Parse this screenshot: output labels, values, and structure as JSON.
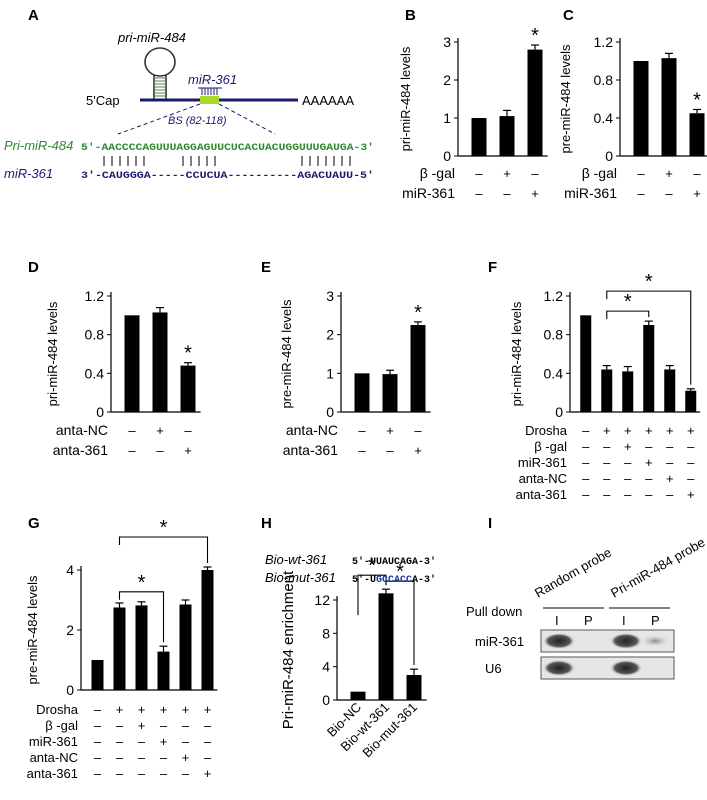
{
  "panel_labels": [
    "A",
    "B",
    "C",
    "D",
    "E",
    "F",
    "G",
    "H",
    "I"
  ],
  "panel_a": {
    "hairpin_label": "pri-miR-484",
    "cap": "5'Cap",
    "polyA": "AAAAAA",
    "mirna_label": "miR-361",
    "binding_site": "BS (82-118)",
    "pri_name": "Pri-miR-484",
    "pri_seq": "5'-AACCCCAGUUUAGGAGUUCUCACUACUGGUUUGAUGA-3'",
    "mir_name": "miR-361",
    "mir_seq": "3'-CAUGGGA-----CCUCUA----------AGACUAUU-5'",
    "colors": {
      "pri": "#2f8a2f",
      "mir": "#1b1b6e",
      "site": "#a8d82a"
    }
  },
  "chart_data": [
    {
      "id": "B",
      "type": "bar",
      "ylabel": "pri-miR-484 levels",
      "ylim": [
        0,
        3
      ],
      "yticks": [
        "0",
        "1",
        "2",
        "3"
      ],
      "values": [
        1.0,
        1.05,
        2.8
      ],
      "errors": [
        0,
        0.15,
        0.12
      ],
      "sig": [
        2
      ],
      "rows": [
        {
          "name": "β -gal",
          "signs": [
            "–",
            "+",
            "–"
          ]
        },
        {
          "name": "miR-361",
          "signs": [
            "–",
            "–",
            "+"
          ]
        }
      ]
    },
    {
      "id": "C",
      "type": "bar",
      "ylabel": "pre-miR-484 levels",
      "ylim": [
        0,
        1.2
      ],
      "yticks": [
        "0",
        "0.4",
        "0.8",
        "1.2"
      ],
      "values": [
        1.0,
        1.03,
        0.45
      ],
      "errors": [
        0,
        0.05,
        0.04
      ],
      "sig": [
        2
      ],
      "rows": [
        {
          "name": "β -gal",
          "signs": [
            "–",
            "+",
            "–"
          ]
        },
        {
          "name": "miR-361",
          "signs": [
            "–",
            "–",
            "+"
          ]
        }
      ]
    },
    {
      "id": "D",
      "type": "bar",
      "ylabel": "pri-miR-484 levels",
      "ylim": [
        0,
        1.2
      ],
      "yticks": [
        "0",
        "0.4",
        "0.8",
        "1.2"
      ],
      "values": [
        1.0,
        1.03,
        0.48
      ],
      "errors": [
        0,
        0.05,
        0.03
      ],
      "sig": [
        2
      ],
      "rows": [
        {
          "name": "anta-NC",
          "signs": [
            "–",
            "+",
            "–"
          ]
        },
        {
          "name": "anta-361",
          "signs": [
            "–",
            "–",
            "+"
          ]
        }
      ]
    },
    {
      "id": "E",
      "type": "bar",
      "ylabel": "pre-miR-484 levels",
      "ylim": [
        0,
        3
      ],
      "yticks": [
        "0",
        "1",
        "2",
        "3"
      ],
      "values": [
        1.0,
        0.98,
        2.25
      ],
      "errors": [
        0,
        0.1,
        0.08
      ],
      "sig": [
        2
      ],
      "rows": [
        {
          "name": "anta-NC",
          "signs": [
            "–",
            "+",
            "–"
          ]
        },
        {
          "name": "anta-361",
          "signs": [
            "–",
            "–",
            "+"
          ]
        }
      ]
    },
    {
      "id": "F",
      "type": "bar",
      "ylabel": "pri-miR-484 levels",
      "ylim": [
        0,
        1.2
      ],
      "yticks": [
        "0",
        "0.4",
        "0.8",
        "1.2"
      ],
      "values": [
        1.0,
        0.44,
        0.42,
        0.9,
        0.44,
        0.22
      ],
      "errors": [
        0,
        0.04,
        0.05,
        0.04,
        0.04,
        0.02
      ],
      "brackets": [
        [
          1,
          3
        ],
        [
          1,
          5
        ]
      ],
      "rows": [
        {
          "name": "Drosha",
          "signs": [
            "–",
            "+",
            "+",
            "+",
            "+",
            "+"
          ]
        },
        {
          "name": "β -gal",
          "signs": [
            "–",
            "–",
            "+",
            "–",
            "–",
            "–"
          ]
        },
        {
          "name": "miR-361",
          "signs": [
            "–",
            "–",
            "–",
            "+",
            "–",
            "–"
          ]
        },
        {
          "name": "anta-NC",
          "signs": [
            "–",
            "–",
            "–",
            "–",
            "+",
            "–"
          ]
        },
        {
          "name": "anta-361",
          "signs": [
            "–",
            "–",
            "–",
            "–",
            "–",
            "+"
          ]
        }
      ]
    },
    {
      "id": "G",
      "type": "bar",
      "ylabel": "pre-miR-484 levels",
      "ylim": [
        0,
        4
      ],
      "yticks": [
        "0",
        "2",
        "4"
      ],
      "values": [
        1.0,
        2.75,
        2.82,
        1.28,
        2.85,
        4.0
      ],
      "errors": [
        0,
        0.15,
        0.12,
        0.18,
        0.15,
        0.1
      ],
      "brackets": [
        [
          1,
          3
        ],
        [
          1,
          5
        ]
      ],
      "rows": [
        {
          "name": "Drosha",
          "signs": [
            "–",
            "+",
            "+",
            "+",
            "+",
            "+"
          ]
        },
        {
          "name": "β -gal",
          "signs": [
            "–",
            "–",
            "+",
            "–",
            "–",
            "–"
          ]
        },
        {
          "name": "miR-361",
          "signs": [
            "–",
            "–",
            "–",
            "+",
            "–",
            "–"
          ]
        },
        {
          "name": "anta-NC",
          "signs": [
            "–",
            "–",
            "–",
            "–",
            "+",
            "–"
          ]
        },
        {
          "name": "anta-361",
          "signs": [
            "–",
            "–",
            "–",
            "–",
            "–",
            "+"
          ]
        }
      ]
    },
    {
      "id": "H",
      "type": "bar",
      "ylabel": "Pri-miR-484 enrichment",
      "ylim": [
        0,
        12
      ],
      "yticks": [
        "0",
        "4",
        "8",
        "12"
      ],
      "categories": [
        "Bio-NC",
        "Bio-wt-361",
        "Bio-mut-361"
      ],
      "values": [
        1.0,
        12.8,
        3.0
      ],
      "errors": [
        0,
        0.5,
        0.7
      ],
      "brackets": [
        [
          0,
          1
        ],
        [
          1,
          2
        ]
      ]
    }
  ],
  "panel_h": {
    "wt_name": "Bio-wt-361",
    "wt_pre": "5'-U",
    "wt_mid": "UAUCAGA",
    "wt_end": "-3'",
    "mut_name": "Bio-mut-361",
    "mut_pre": "5'-U",
    "mut_mid": "GCCACC",
    "mut_end": "A-3'",
    "mut_color": "#1c3aa0"
  },
  "panel_i": {
    "pull_down": "Pull down",
    "probe1": "Random probe",
    "probe2": "Pri-miR-484 probe",
    "lanes": [
      "I",
      "P",
      "I",
      "P"
    ],
    "rows": [
      "miR-361",
      "U6"
    ]
  },
  "star": "*"
}
